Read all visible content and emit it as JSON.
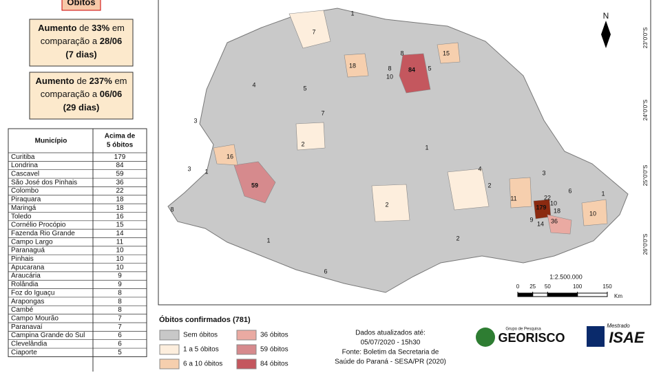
{
  "header": {
    "title": "Óbitos"
  },
  "summary_boxes": [
    {
      "word": "Aumento",
      "prep": "de",
      "percent": "33%",
      "suffix": "em",
      "comparison": "comparação a",
      "date": "28/06",
      "period": "(7 dias)"
    },
    {
      "word": "Aumento",
      "prep": "de",
      "percent": "237%",
      "suffix": "em",
      "comparison": "comparação a",
      "date": "06/06",
      "period": "(29 dias)"
    }
  ],
  "table": {
    "columns": [
      "Município",
      [
        "Acima de",
        "5 óbitos"
      ]
    ],
    "rows": [
      [
        "Curitiba",
        179
      ],
      [
        "Londrina",
        84
      ],
      [
        "Cascavel",
        59
      ],
      [
        "São José dos Pinhais",
        36
      ],
      [
        "Colombo",
        22
      ],
      [
        "Piraquara",
        18
      ],
      [
        "Maringá",
        18
      ],
      [
        "Toledo",
        16
      ],
      [
        "Cornélio Procópio",
        15
      ],
      [
        "Fazenda Rio Grande",
        14
      ],
      [
        "Campo Largo",
        11
      ],
      [
        "Paranaguá",
        10
      ],
      [
        "Pinhais",
        10
      ],
      [
        "Apucarana",
        10
      ],
      [
        "Araucária",
        9
      ],
      [
        "Rolândia",
        9
      ],
      [
        "Foz do Iguaçu",
        8
      ],
      [
        "Arapongas",
        8
      ],
      [
        "Cambé",
        8
      ],
      [
        "Campo Mourão",
        7
      ],
      [
        "Paranavaí",
        7
      ],
      [
        "Campina Grande do Sul",
        6
      ],
      [
        "Clevelândia",
        6
      ],
      [
        "Ciaporte",
        5
      ]
    ]
  },
  "map": {
    "labels": [
      "84",
      "59",
      "179",
      "36",
      "22",
      "18",
      "18",
      "16",
      "15",
      "11",
      "10",
      "10",
      "10",
      "9",
      "14",
      "8",
      "8",
      "8",
      "7",
      "7",
      "6",
      "6",
      "4",
      "4",
      "3",
      "3",
      "3",
      "2",
      "2",
      "2",
      "2",
      "5",
      "5",
      "1",
      "1",
      "1",
      "1",
      "1"
    ],
    "north": "N",
    "lat_labels": [
      "23°0'0\"S",
      "24°0'0\"S",
      "25°0'0\"S",
      "26°0'0\"S"
    ],
    "scale": "1:2.500.000",
    "scale_ticks": [
      0,
      25,
      50,
      100,
      150
    ],
    "scale_unit": "Km"
  },
  "legend": {
    "title": "Óbitos confirmados (781)",
    "items": [
      {
        "label": "Sem óbitos",
        "color": "#c8c8c8"
      },
      {
        "label": "1 a 5 óbitos",
        "color": "#fdeedd"
      },
      {
        "label": "6 a 10 óbitos",
        "color": "#f6cfae"
      },
      {
        "label": "36 óbitos",
        "color": "#eaaaa2"
      },
      {
        "label": "59 óbitos",
        "color": "#d68a8d"
      },
      {
        "label": "84 óbitos",
        "color": "#c4575e"
      }
    ]
  },
  "source": {
    "lines": [
      "Dados atualizados até:",
      "05/07/2020 - 15h30",
      "Fonte: Boletim da Secretaria de",
      "Saúde do Paraná - SESA/PR (2020)"
    ]
  },
  "logos": {
    "georisco_caption": "Grupo de Pesquisa",
    "georisco": "GEORISCO",
    "isae_caption": "Mestrado",
    "isae": "ISAE"
  }
}
